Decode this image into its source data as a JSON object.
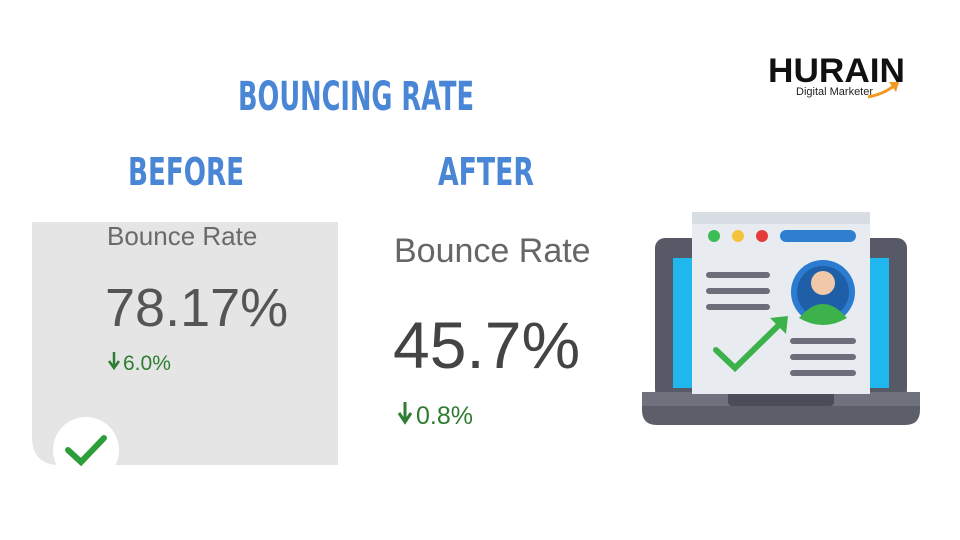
{
  "title": "BOUNCING RATE",
  "logo": {
    "name": "HURAIN",
    "tagline": "Digital Marketer"
  },
  "before": {
    "label": "BEFORE",
    "card_title": "Bounce Rate",
    "value": "78.17%",
    "change": "6.0%"
  },
  "after": {
    "label": "AFTER",
    "card_title": "Bounce Rate",
    "value": "45.7%",
    "change": "0.8%"
  }
}
